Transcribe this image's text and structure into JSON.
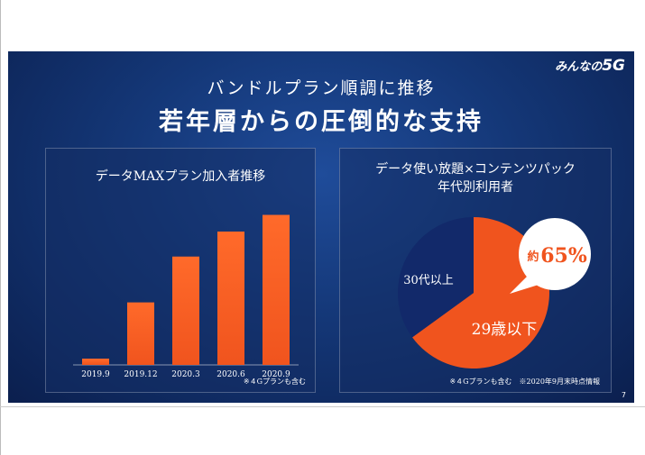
{
  "slide": {
    "brand_small": "みんなの",
    "brand_big": "5G",
    "subheadline": "バンドルプラン順調に推移",
    "headline": "若年層からの圧倒的な支持",
    "page_number": "7"
  },
  "left_panel": {
    "title": "データMAXプラン加入者推移",
    "note": "※４Gプランも含む"
  },
  "right_panel": {
    "title_line1": "データ使い放題×コンテンツパック",
    "title_line2": "年代別利用者",
    "note": "※４Gプランも含む　※2020年9月末時点情報"
  },
  "chart_data": [
    {
      "type": "bar",
      "title": "データMAXプラン加入者推移",
      "categories": [
        "2019.9",
        "2019.12",
        "2020.3",
        "2020.6",
        "2020.9"
      ],
      "values": [
        3,
        30,
        52,
        64,
        72
      ],
      "ylim": [
        0,
        80
      ],
      "grid": false,
      "colors": {
        "bar": "#f0541e"
      }
    },
    {
      "type": "pie",
      "title": "データ使い放題×コンテンツパック 年代別利用者",
      "slices": [
        {
          "label": "29歳以下",
          "value": 65,
          "color": "#f0541e"
        },
        {
          "label": "30代以上",
          "value": 35,
          "color": "#12296a"
        }
      ],
      "callout": {
        "prefix": "約",
        "value": "65%"
      }
    }
  ]
}
